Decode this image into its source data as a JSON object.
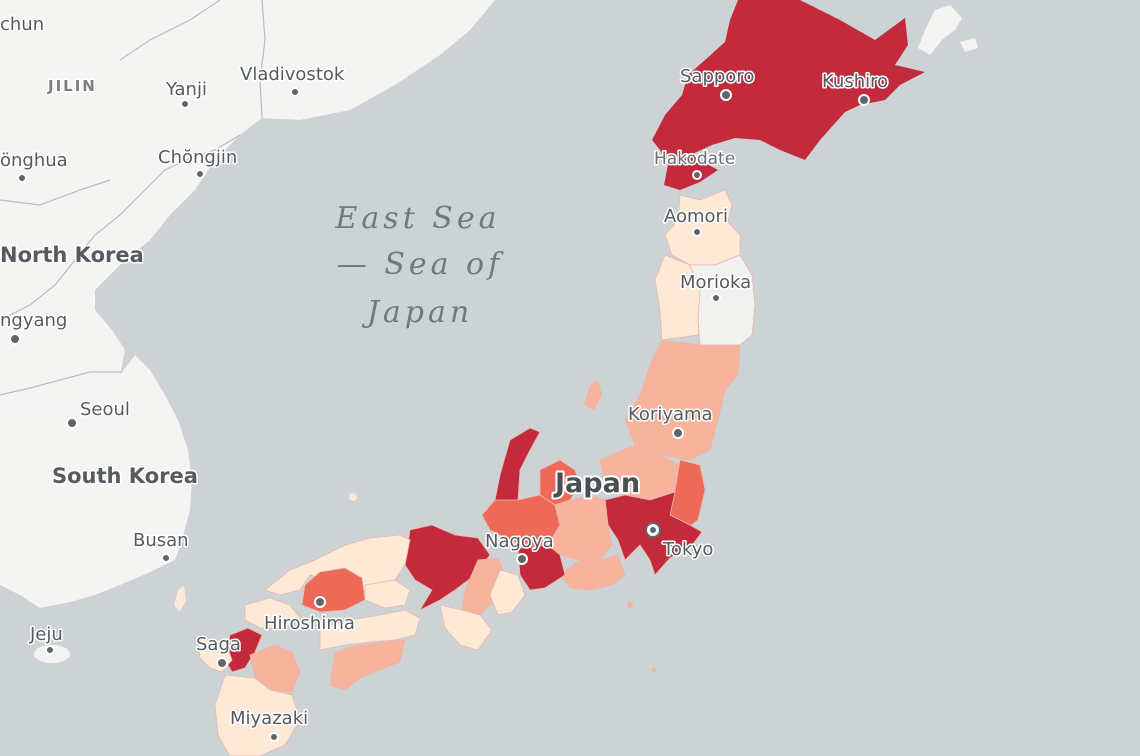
{
  "map": {
    "colors": {
      "water": "#cdd2d4",
      "land": "#f4f4f3",
      "level_0": "#f1f1f0",
      "level_1": "#fde9d6",
      "level_2": "#f7b39b",
      "level_3": "#ee6a58",
      "level_4": "#c32a3b"
    },
    "labels": {
      "sea_line1": "East Sea",
      "sea_line2": "— Sea of",
      "sea_line3": "Japan",
      "japan": "Japan",
      "north_korea": "North Korea",
      "south_korea": "South Korea",
      "jilin": "JILIN",
      "chun": "chun",
      "yanji": "Yanji",
      "vladivostok": "Vladivostok",
      "onghua": "önghua",
      "chongjin": "Chŏngjin",
      "pyongyang": "ngyang",
      "seoul": "Seoul",
      "busan": "Busan",
      "jeju": "Jeju",
      "sapporo": "Sapporo",
      "kushiro": "Kushiro",
      "hakodate": "Hakodate",
      "aomori": "Aomori",
      "morioka": "Morioka",
      "koriyama": "Koriyama",
      "nagoya": "Nagoya",
      "tokyo": "Tokyo",
      "hiroshima": "Hiroshima",
      "saga": "Saga",
      "miyazaki": "Miyazaki"
    }
  }
}
